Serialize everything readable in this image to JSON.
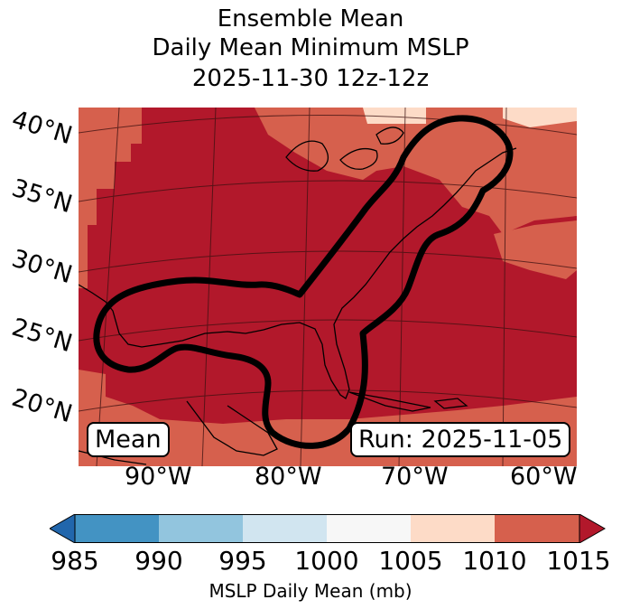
{
  "title": {
    "line1": "Ensemble Mean",
    "line2": "Daily Mean Minimum MSLP",
    "line3": "2025-11-30 12z-12z"
  },
  "lat_labels": [
    "40°N",
    "35°N",
    "30°N",
    "25°N",
    "20°N"
  ],
  "lon_labels": [
    "90°W",
    "80°W",
    "70°W",
    "60°W"
  ],
  "mean_box": "Mean",
  "run_box": "Run: 2025-11-05",
  "colorbar": {
    "label": "MSLP Daily Mean (mb)",
    "ticks": [
      "985",
      "990",
      "995",
      "1000",
      "1005",
      "1010",
      "1015"
    ],
    "colors": [
      "#2166ac",
      "#4393c3",
      "#92c5de",
      "#d1e5f0",
      "#f7f7f7",
      "#fddbc7",
      "#d6604d",
      "#b2182b"
    ],
    "extend": "both"
  },
  "map_colors": {
    "land_sea_1015plus": "#b2182b",
    "range_1010_1015": "#d6604d",
    "range_1005_1010": "#fddbc7",
    "contour": "#000000"
  }
}
